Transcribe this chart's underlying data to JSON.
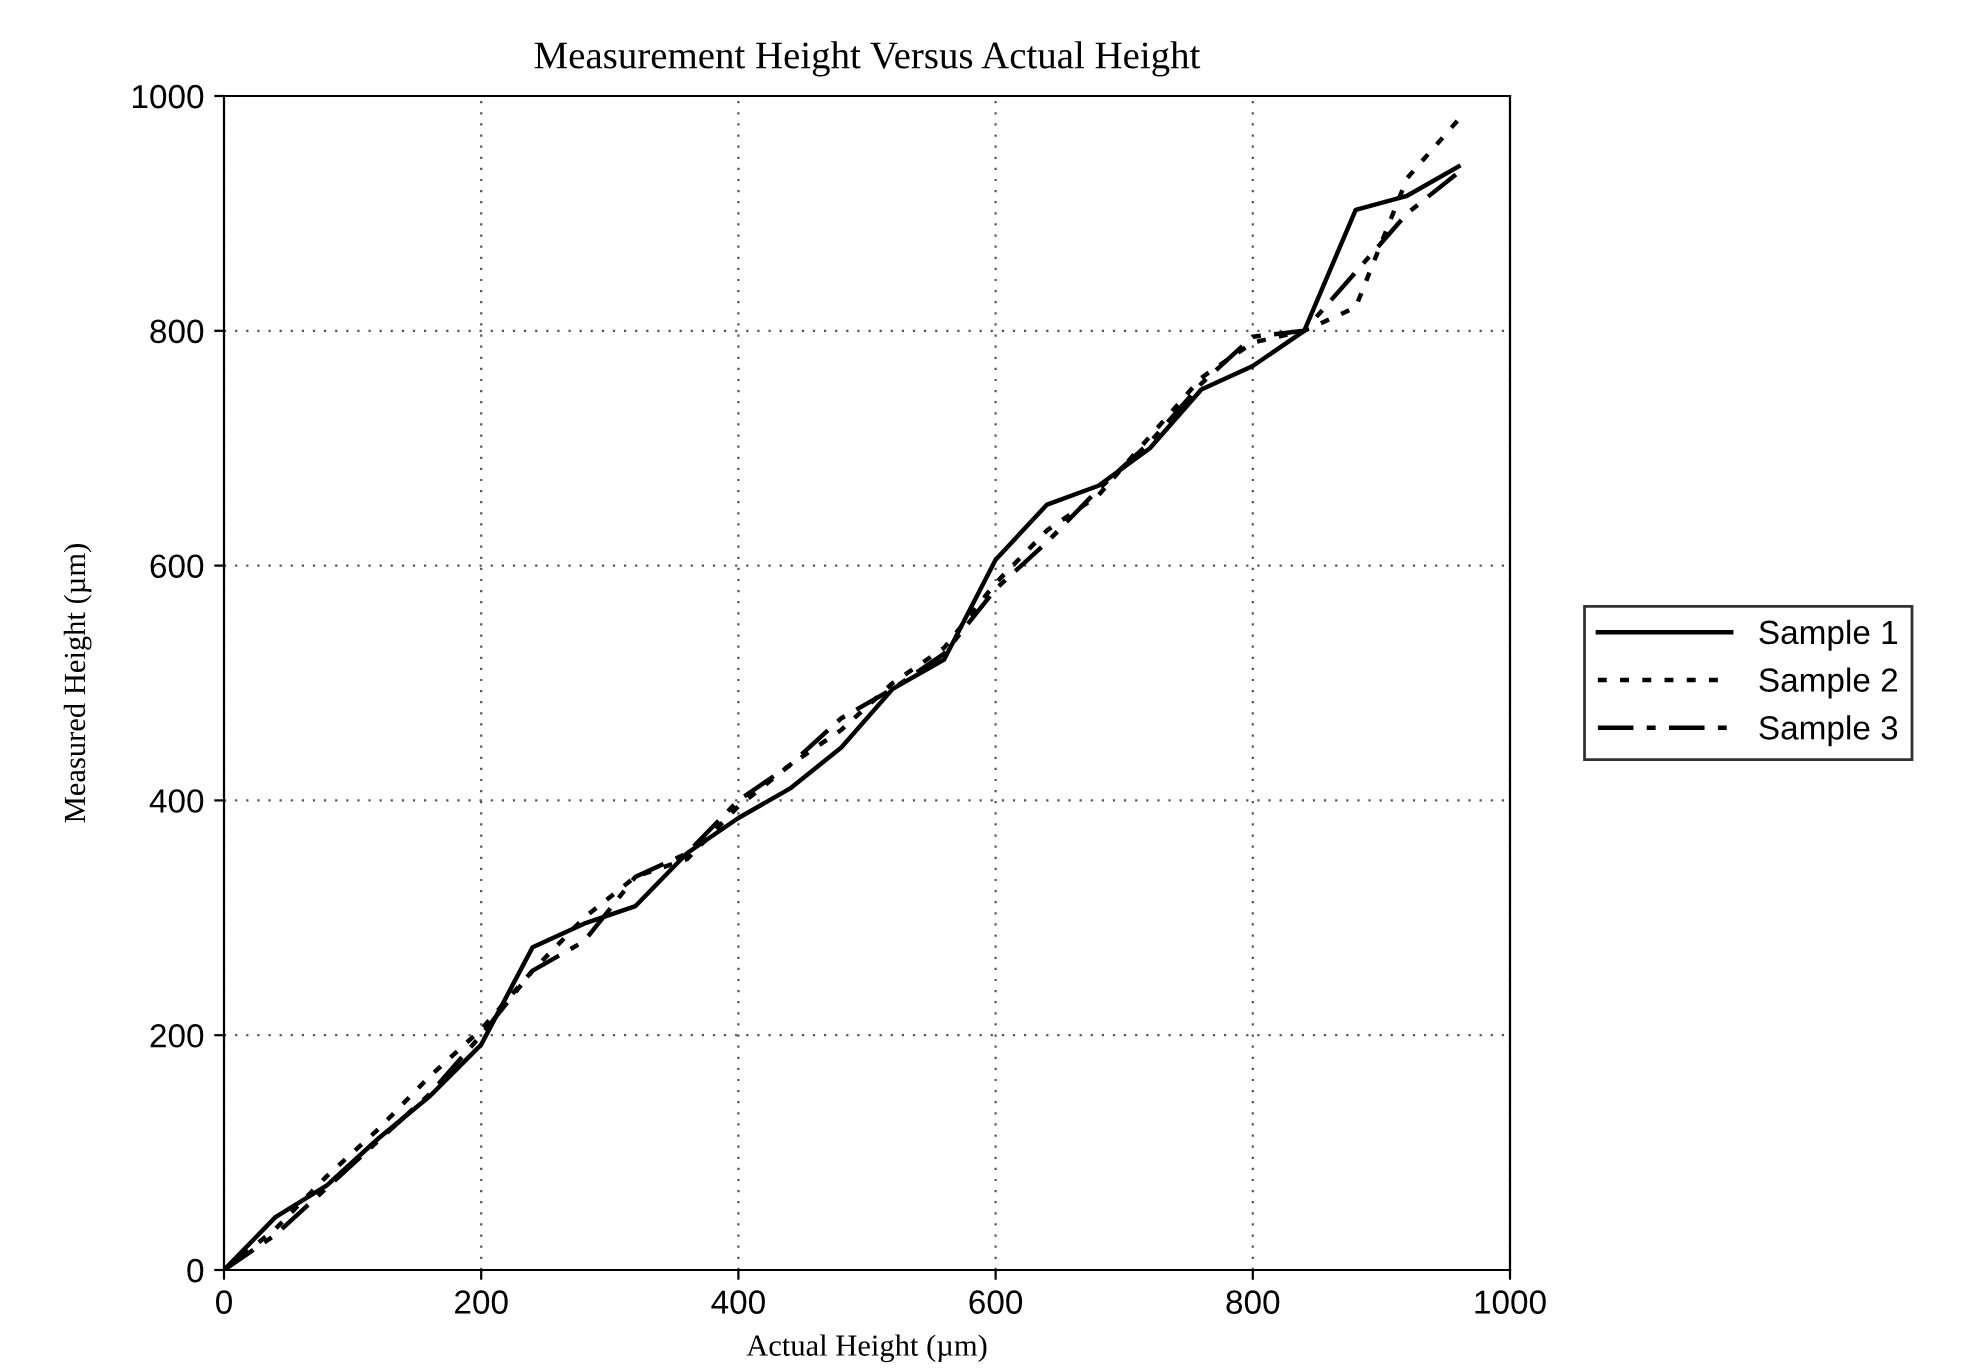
{
  "chart_data": {
    "type": "line",
    "title": "Measurement Height Versus Actual Height",
    "xlabel": "Actual Height (µm)",
    "ylabel": "Measured Height (µm)",
    "x": [
      0,
      40,
      80,
      120,
      160,
      200,
      240,
      280,
      320,
      360,
      400,
      440,
      480,
      520,
      560,
      600,
      640,
      680,
      720,
      760,
      800,
      840,
      880,
      920,
      960
    ],
    "series": [
      {
        "name": "Sample 1",
        "color": "#000000",
        "line_style": "solid",
        "values": [
          0,
          45,
          72,
          112,
          148,
          192,
          275,
          295,
          310,
          355,
          385,
          410,
          445,
          495,
          520,
          605,
          652,
          668,
          700,
          750,
          770,
          800,
          903,
          915,
          940
        ]
      },
      {
        "name": "Sample 2",
        "color": "#000000",
        "line_style": "dotted",
        "values": [
          0,
          35,
          80,
          120,
          165,
          205,
          255,
          300,
          335,
          350,
          395,
          430,
          460,
          500,
          530,
          585,
          630,
          660,
          710,
          760,
          790,
          800,
          820,
          930,
          980
        ]
      },
      {
        "name": "Sample 3",
        "color": "#000000",
        "line_style": "dashdot",
        "values": [
          0,
          30,
          70,
          110,
          150,
          200,
          255,
          280,
          335,
          355,
          400,
          430,
          470,
          495,
          525,
          580,
          620,
          665,
          705,
          755,
          795,
          800,
          850,
          900,
          935
        ]
      }
    ],
    "xlim": [
      0,
      1000
    ],
    "ylim": [
      0,
      1000
    ],
    "xticks": [
      0,
      200,
      400,
      600,
      800,
      1000
    ],
    "yticks": [
      0,
      200,
      400,
      600,
      800,
      1000
    ],
    "grid": true,
    "legend": "right",
    "marker": "none"
  }
}
